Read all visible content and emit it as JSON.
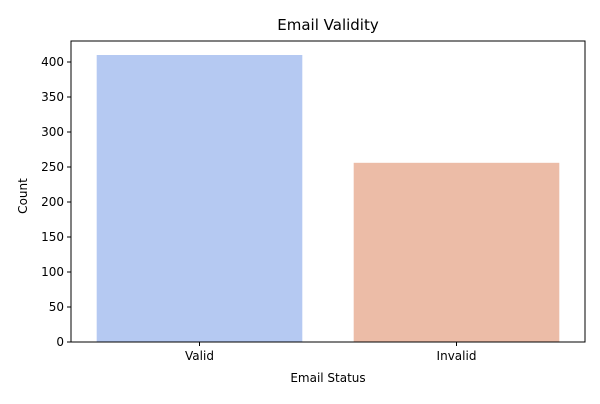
{
  "chart_data": {
    "type": "bar",
    "title": "Email Validity",
    "xlabel": "Email Status",
    "ylabel": "Count",
    "categories": [
      "Valid",
      "Invalid"
    ],
    "values": [
      410,
      256
    ],
    "colors": [
      "#b5c9f2",
      "#ecbca7"
    ],
    "ylim": [
      0,
      430
    ],
    "yticks": [
      0,
      50,
      100,
      150,
      200,
      250,
      300,
      350,
      400
    ],
    "grid": false,
    "legend": "none"
  }
}
